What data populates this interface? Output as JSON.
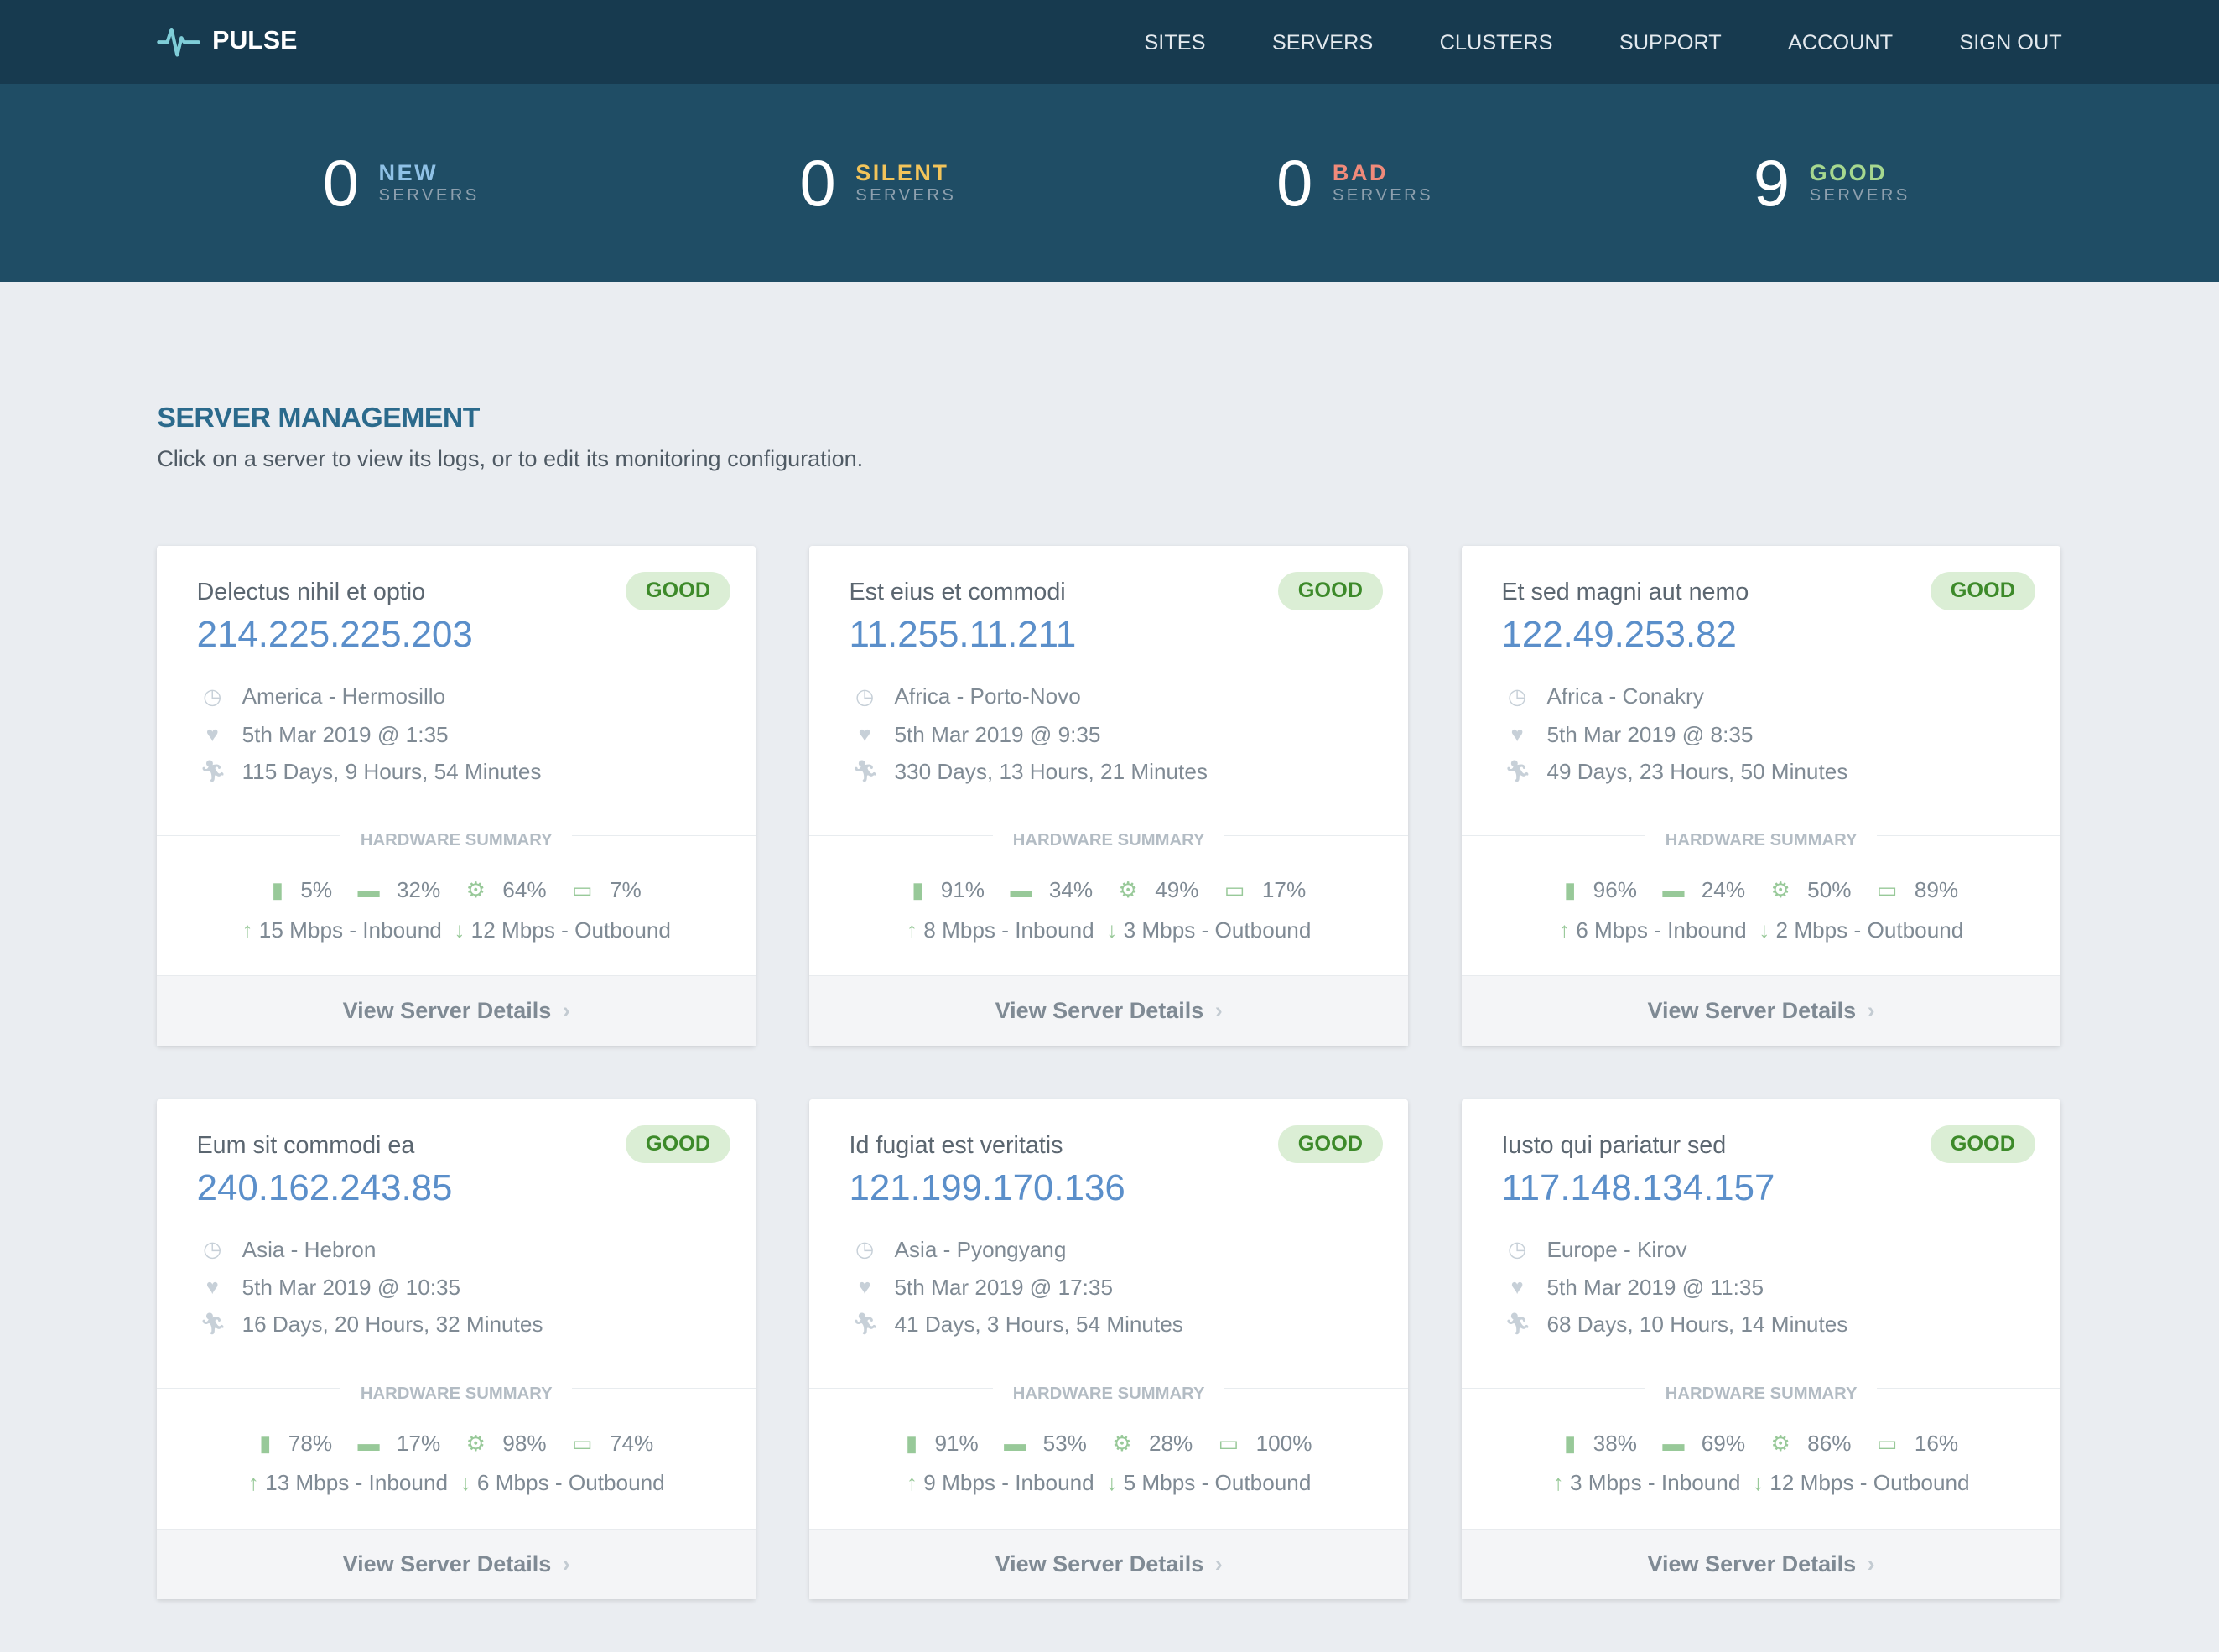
{
  "brand": "PULSE",
  "nav": [
    "SITES",
    "SERVERS",
    "CLUSTERS",
    "SUPPORT",
    "ACCOUNT",
    "SIGN OUT"
  ],
  "stats": [
    {
      "count": "0",
      "label": "NEW",
      "sub": "SERVERS",
      "color": "#8fc1e6"
    },
    {
      "count": "0",
      "label": "SILENT",
      "sub": "SERVERS",
      "color": "#f2c45a"
    },
    {
      "count": "0",
      "label": "BAD",
      "sub": "SERVERS",
      "color": "#f08a7a"
    },
    {
      "count": "9",
      "label": "GOOD",
      "sub": "SERVERS",
      "color": "#a6d88f"
    }
  ],
  "section": {
    "title": "SERVER MANAGEMENT",
    "description": "Click on a server to view its logs, or to edit its monitoring configuration."
  },
  "hardware_label": "HARDWARE SUMMARY",
  "details_label": "View Server Details",
  "servers": [
    {
      "name": "Delectus nihil et optio",
      "ip": "214.225.225.203",
      "status": "GOOD",
      "location": "America - Hermosillo",
      "heartbeat": "5th Mar 2019 @ 1:35",
      "uptime": "115 Days, 9 Hours, 54 Minutes",
      "cpu": "5%",
      "ram": "32%",
      "proc": "64%",
      "disk": "7%",
      "inbound": "15 Mbps - Inbound",
      "outbound": "12 Mbps - Outbound"
    },
    {
      "name": "Est eius et commodi",
      "ip": "11.255.11.211",
      "status": "GOOD",
      "location": "Africa - Porto-Novo",
      "heartbeat": "5th Mar 2019 @ 9:35",
      "uptime": "330 Days, 13 Hours, 21 Minutes",
      "cpu": "91%",
      "ram": "34%",
      "proc": "49%",
      "disk": "17%",
      "inbound": "8 Mbps - Inbound",
      "outbound": "3 Mbps - Outbound"
    },
    {
      "name": "Et sed magni aut nemo",
      "ip": "122.49.253.82",
      "status": "GOOD",
      "location": "Africa - Conakry",
      "heartbeat": "5th Mar 2019 @ 8:35",
      "uptime": "49 Days, 23 Hours, 50 Minutes",
      "cpu": "96%",
      "ram": "24%",
      "proc": "50%",
      "disk": "89%",
      "inbound": "6 Mbps - Inbound",
      "outbound": "2 Mbps - Outbound"
    },
    {
      "name": "Eum sit commodi ea",
      "ip": "240.162.243.85",
      "status": "GOOD",
      "location": "Asia - Hebron",
      "heartbeat": "5th Mar 2019 @ 10:35",
      "uptime": "16 Days, 20 Hours, 32 Minutes",
      "cpu": "78%",
      "ram": "17%",
      "proc": "98%",
      "disk": "74%",
      "inbound": "13 Mbps - Inbound",
      "outbound": "6 Mbps - Outbound"
    },
    {
      "name": "Id fugiat est veritatis",
      "ip": "121.199.170.136",
      "status": "GOOD",
      "location": "Asia - Pyongyang",
      "heartbeat": "5th Mar 2019 @ 17:35",
      "uptime": "41 Days, 3 Hours, 54 Minutes",
      "cpu": "91%",
      "ram": "53%",
      "proc": "28%",
      "disk": "100%",
      "inbound": "9 Mbps - Inbound",
      "outbound": "5 Mbps - Outbound"
    },
    {
      "name": "Iusto qui pariatur sed",
      "ip": "117.148.134.157",
      "status": "GOOD",
      "location": "Europe - Kirov",
      "heartbeat": "5th Mar 2019 @ 11:35",
      "uptime": "68 Days, 10 Hours, 14 Minutes",
      "cpu": "38%",
      "ram": "69%",
      "proc": "86%",
      "disk": "16%",
      "inbound": "3 Mbps - Inbound",
      "outbound": "12 Mbps - Outbound"
    }
  ]
}
